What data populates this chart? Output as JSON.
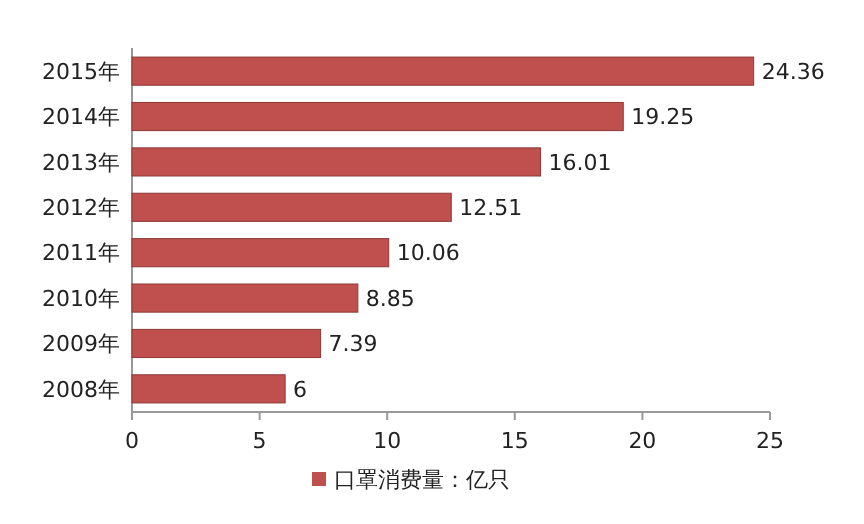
{
  "chart_data": {
    "type": "bar",
    "orientation": "horizontal",
    "categories": [
      "2015年",
      "2014年",
      "2013年",
      "2012年",
      "2011年",
      "2010年",
      "2009年",
      "2008年"
    ],
    "series": [
      {
        "name": "口罩消费量：亿只",
        "color": "#c0504d",
        "values": [
          24.36,
          19.25,
          16.01,
          12.51,
          10.06,
          8.85,
          7.39,
          6
        ]
      }
    ],
    "xlim": [
      0,
      25
    ],
    "xticks": [
      0,
      5,
      10,
      15,
      20,
      25
    ],
    "data_labels": true,
    "legend": "bottom",
    "grid": false
  }
}
